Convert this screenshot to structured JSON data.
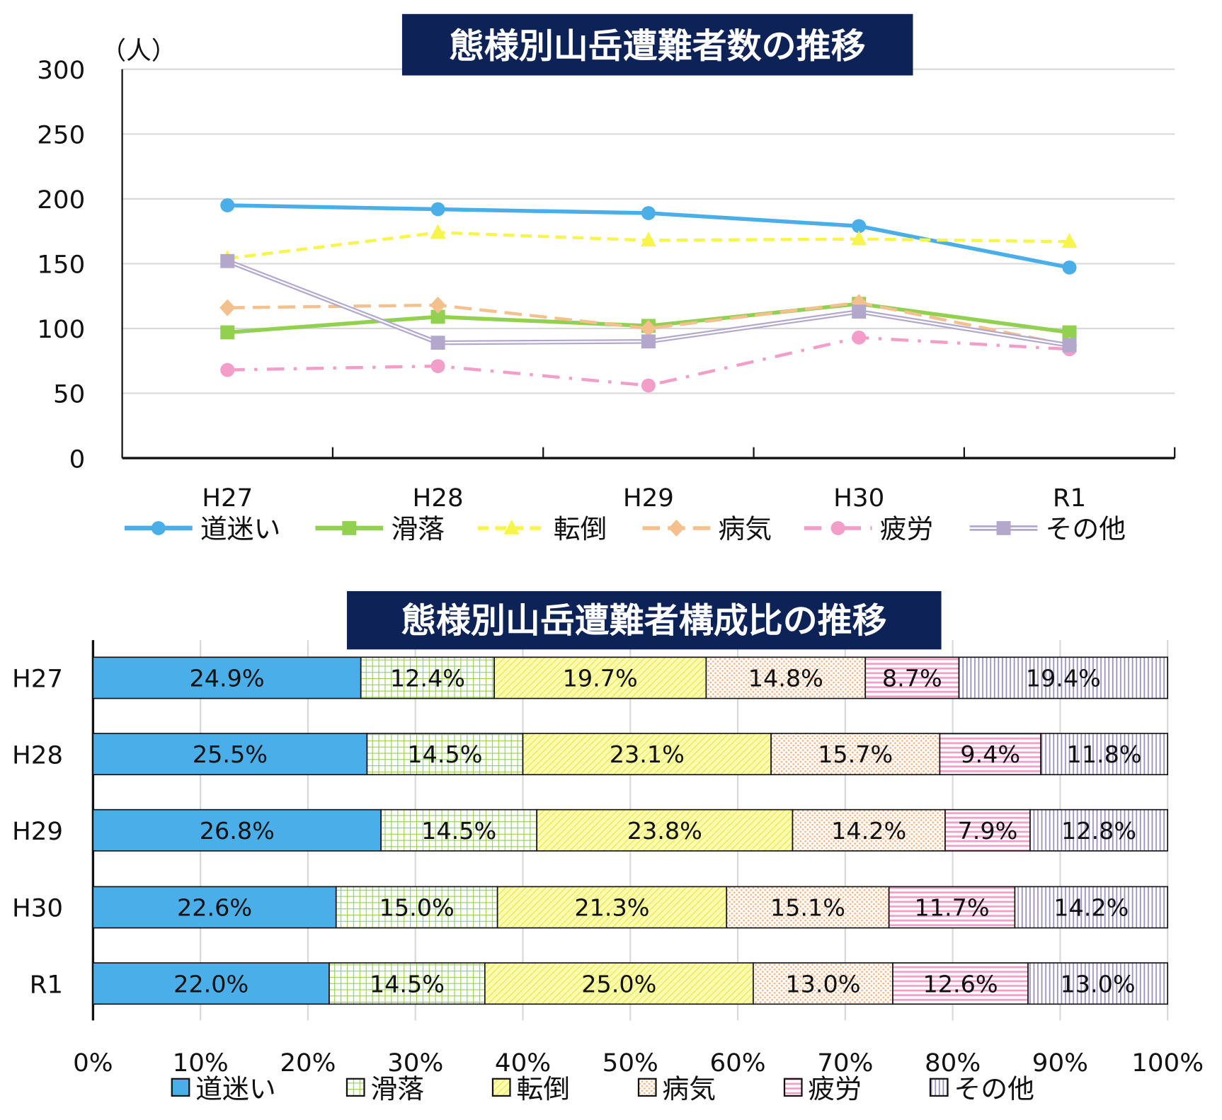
{
  "colors": {
    "title_bg": "#0d2357",
    "道迷い": "#4aaee8",
    "滑落": "#92d050",
    "転倒": "#f7f54a",
    "病気": "#f4c08e",
    "疲労": "#f29ec8",
    "その他": "#b3a8cc"
  },
  "chart_data": [
    {
      "type": "line",
      "title": "態様別山岳遭難者数の推移",
      "ylabel": "（人）",
      "xlabel": "",
      "categories": [
        "H27",
        "H28",
        "H29",
        "H30",
        "R1"
      ],
      "ylim": [
        0,
        300
      ],
      "yticks": [
        "0",
        "50",
        "100",
        "150",
        "200",
        "250",
        "300"
      ],
      "grid": true,
      "legend": "bottom",
      "series": [
        {
          "name": "道迷い",
          "values": [
            195,
            192,
            189,
            179,
            147
          ],
          "marker": "circle",
          "line": "solid"
        },
        {
          "name": "滑落",
          "values": [
            97,
            109,
            102,
            119,
            97
          ],
          "marker": "square",
          "line": "solid"
        },
        {
          "name": "転倒",
          "values": [
            154,
            174,
            168,
            169,
            167
          ],
          "marker": "triangle",
          "line": "dash"
        },
        {
          "name": "病気",
          "values": [
            116,
            118,
            100,
            120,
            87
          ],
          "marker": "diamond",
          "line": "long-dash"
        },
        {
          "name": "疲労",
          "values": [
            68,
            71,
            56,
            93,
            84
          ],
          "marker": "circle",
          "line": "dash-dot"
        },
        {
          "name": "その他",
          "values": [
            152,
            89,
            90,
            113,
            87
          ],
          "marker": "square",
          "line": "double"
        }
      ]
    },
    {
      "type": "bar",
      "orientation": "horizontal-stacked-100",
      "title": "態様別山岳遭難者構成比の推移",
      "categories": [
        "H27",
        "H28",
        "H29",
        "H30",
        "R1"
      ],
      "xlim": [
        0,
        100
      ],
      "xticks": [
        "0%",
        "10%",
        "20%",
        "30%",
        "40%",
        "50%",
        "60%",
        "70%",
        "80%",
        "90%",
        "100%"
      ],
      "grid": true,
      "legend": "bottom",
      "series": [
        {
          "name": "道迷い",
          "values": [
            24.9,
            25.5,
            26.8,
            22.6,
            22.0
          ],
          "labels": [
            "24.9%",
            "25.5%",
            "26.8%",
            "22.6%",
            "22.0%"
          ]
        },
        {
          "name": "滑落",
          "values": [
            12.4,
            14.5,
            14.5,
            15.0,
            14.5
          ],
          "labels": [
            "12.4%",
            "14.5%",
            "14.5%",
            "15.0%",
            "14.5%"
          ]
        },
        {
          "name": "転倒",
          "values": [
            19.7,
            23.1,
            23.8,
            21.3,
            25.0
          ],
          "labels": [
            "19.7%",
            "23.1%",
            "23.8%",
            "21.3%",
            "25.0%"
          ]
        },
        {
          "name": "病気",
          "values": [
            14.8,
            15.7,
            14.2,
            15.1,
            13.0
          ],
          "labels": [
            "14.8%",
            "15.7%",
            "14.2%",
            "15.1%",
            "13.0%"
          ]
        },
        {
          "name": "疲労",
          "values": [
            8.7,
            9.4,
            7.9,
            11.7,
            12.6
          ],
          "labels": [
            "8.7%",
            "9.4%",
            "7.9%",
            "11.7%",
            "12.6%"
          ]
        },
        {
          "name": "その他",
          "values": [
            19.4,
            11.8,
            12.8,
            14.2,
            13.0
          ],
          "labels": [
            "19.4%",
            "11.8%",
            "12.8%",
            "14.2%",
            "13.0%"
          ]
        }
      ]
    }
  ]
}
